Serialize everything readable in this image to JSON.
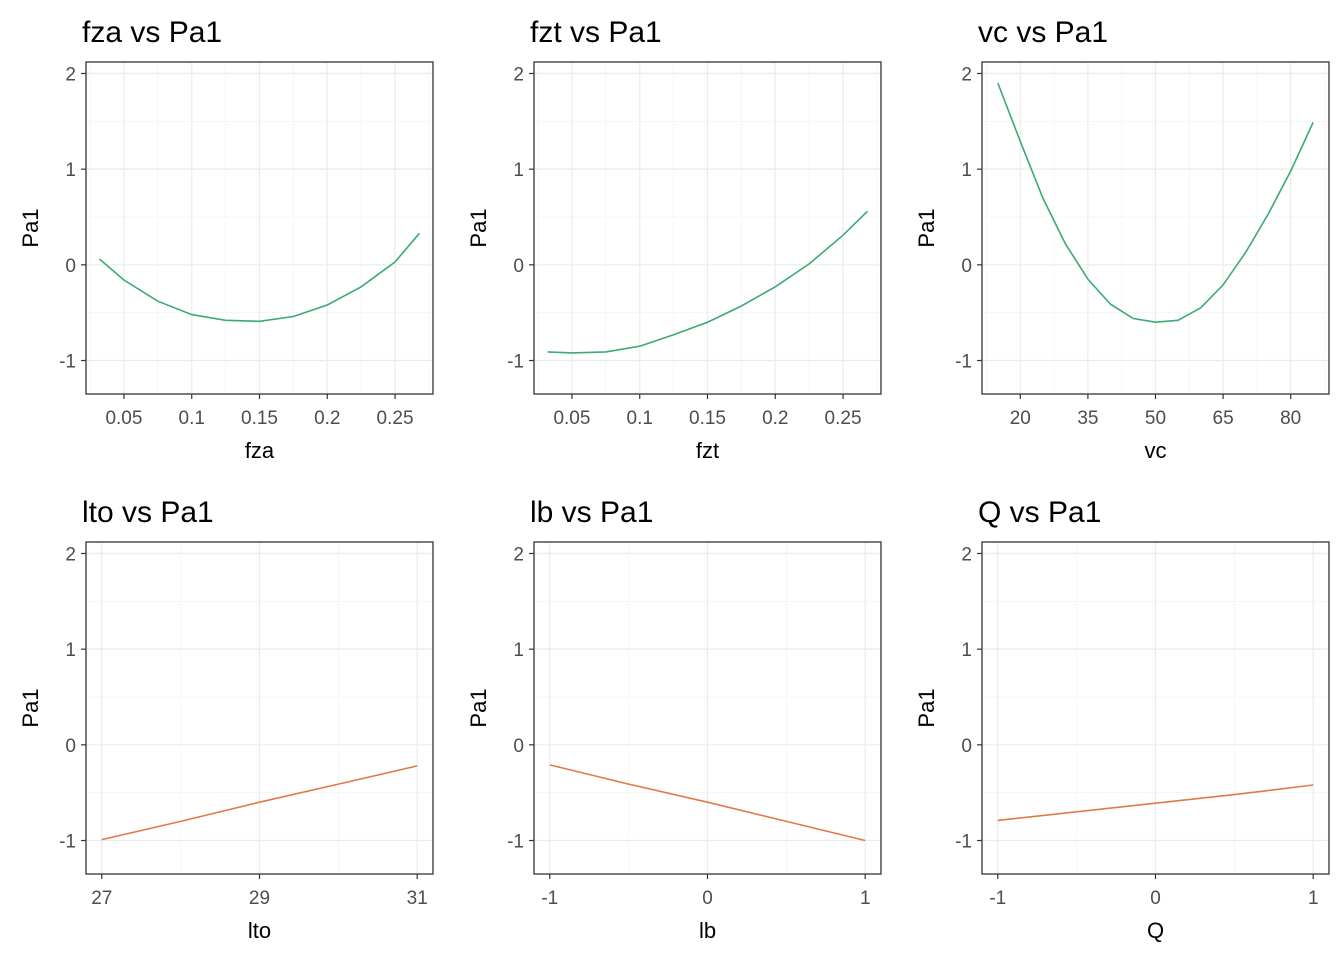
{
  "chart_data": [
    {
      "type": "line",
      "title": "fza vs Pa1",
      "xlabel": "fza",
      "ylabel": "Pa1",
      "xlim": [
        0.022,
        0.278
      ],
      "ylim": [
        -1.35,
        2.12
      ],
      "x_ticks": [
        0.05,
        0.1,
        0.15,
        0.2,
        0.25
      ],
      "x_tick_labels": [
        "0.05",
        "0.1",
        "0.15",
        "0.2",
        "0.25"
      ],
      "y_ticks": [
        -1,
        0,
        1,
        2
      ],
      "y_tick_labels": [
        "-1",
        "0",
        "1",
        "2"
      ],
      "grid": true,
      "color": "#3caa72",
      "series": [
        {
          "x": [
            0.032,
            0.05,
            0.075,
            0.1,
            0.125,
            0.15,
            0.175,
            0.2,
            0.225,
            0.25,
            0.268
          ],
          "values": [
            0.06,
            -0.16,
            -0.38,
            -0.52,
            -0.58,
            -0.59,
            -0.54,
            -0.42,
            -0.23,
            0.03,
            0.33
          ]
        }
      ]
    },
    {
      "type": "line",
      "title": "fzt vs Pa1",
      "xlabel": "fzt",
      "ylabel": "Pa1",
      "xlim": [
        0.022,
        0.278
      ],
      "ylim": [
        -1.35,
        2.12
      ],
      "x_ticks": [
        0.05,
        0.1,
        0.15,
        0.2,
        0.25
      ],
      "x_tick_labels": [
        "0.05",
        "0.1",
        "0.15",
        "0.2",
        "0.25"
      ],
      "y_ticks": [
        -1,
        0,
        1,
        2
      ],
      "y_tick_labels": [
        "-1",
        "0",
        "1",
        "2"
      ],
      "grid": true,
      "color": "#3caa72",
      "series": [
        {
          "x": [
            0.032,
            0.05,
            0.075,
            0.1,
            0.125,
            0.15,
            0.175,
            0.2,
            0.225,
            0.25,
            0.268
          ],
          "values": [
            -0.91,
            -0.92,
            -0.91,
            -0.85,
            -0.73,
            -0.6,
            -0.43,
            -0.23,
            0.01,
            0.31,
            0.56
          ]
        }
      ]
    },
    {
      "type": "line",
      "title": "vc vs Pa1",
      "xlabel": "vc",
      "ylabel": "Pa1",
      "xlim": [
        11.5,
        88.5
      ],
      "ylim": [
        -1.35,
        2.12
      ],
      "x_ticks": [
        20,
        35,
        50,
        65,
        80
      ],
      "x_tick_labels": [
        "20",
        "35",
        "50",
        "65",
        "80"
      ],
      "y_ticks": [
        -1,
        0,
        1,
        2
      ],
      "y_tick_labels": [
        "-1",
        "0",
        "1",
        "2"
      ],
      "grid": true,
      "color": "#3caa72",
      "series": [
        {
          "x": [
            15,
            20,
            25,
            30,
            35,
            40,
            45,
            50,
            55,
            60,
            65,
            70,
            75,
            80,
            85
          ],
          "values": [
            1.9,
            1.29,
            0.7,
            0.22,
            -0.15,
            -0.41,
            -0.56,
            -0.6,
            -0.58,
            -0.45,
            -0.21,
            0.13,
            0.53,
            0.98,
            1.49
          ]
        }
      ]
    },
    {
      "type": "line",
      "title": "lto vs Pa1",
      "xlabel": "lto",
      "ylabel": "Pa1",
      "xlim": [
        26.8,
        31.2
      ],
      "ylim": [
        -1.35,
        2.12
      ],
      "x_ticks": [
        27,
        29,
        31
      ],
      "x_tick_labels": [
        "27",
        "29",
        "31"
      ],
      "y_ticks": [
        -1,
        0,
        1,
        2
      ],
      "y_tick_labels": [
        "-1",
        "0",
        "1",
        "2"
      ],
      "grid": true,
      "color": "#e07b47",
      "series": [
        {
          "x": [
            27,
            28,
            29,
            30,
            31
          ],
          "values": [
            -0.99,
            -0.8,
            -0.6,
            -0.41,
            -0.22
          ]
        }
      ]
    },
    {
      "type": "line",
      "title": "lb vs Pa1",
      "xlabel": "lb",
      "ylabel": "Pa1",
      "xlim": [
        -1.1,
        1.1
      ],
      "ylim": [
        -1.35,
        2.12
      ],
      "x_ticks": [
        -1,
        0,
        1
      ],
      "x_tick_labels": [
        "-1",
        "0",
        "1"
      ],
      "y_ticks": [
        -1,
        0,
        1,
        2
      ],
      "y_tick_labels": [
        "-1",
        "0",
        "1",
        "2"
      ],
      "grid": true,
      "color": "#e07b47",
      "series": [
        {
          "x": [
            -1,
            -0.5,
            0,
            0.5,
            1
          ],
          "values": [
            -0.21,
            -0.41,
            -0.6,
            -0.8,
            -1.0
          ]
        }
      ]
    },
    {
      "type": "line",
      "title": "Q vs Pa1",
      "xlabel": "Q",
      "ylabel": "Pa1",
      "xlim": [
        -1.1,
        1.1
      ],
      "ylim": [
        -1.35,
        2.12
      ],
      "x_ticks": [
        -1,
        0,
        1
      ],
      "x_tick_labels": [
        "-1",
        "0",
        "1"
      ],
      "y_ticks": [
        -1,
        0,
        1,
        2
      ],
      "y_tick_labels": [
        "-1",
        "0",
        "1",
        "2"
      ],
      "grid": true,
      "color": "#e07b47",
      "series": [
        {
          "x": [
            -1,
            -0.5,
            0,
            0.5,
            1
          ],
          "values": [
            -0.79,
            -0.7,
            -0.61,
            -0.52,
            -0.42
          ]
        }
      ]
    }
  ]
}
